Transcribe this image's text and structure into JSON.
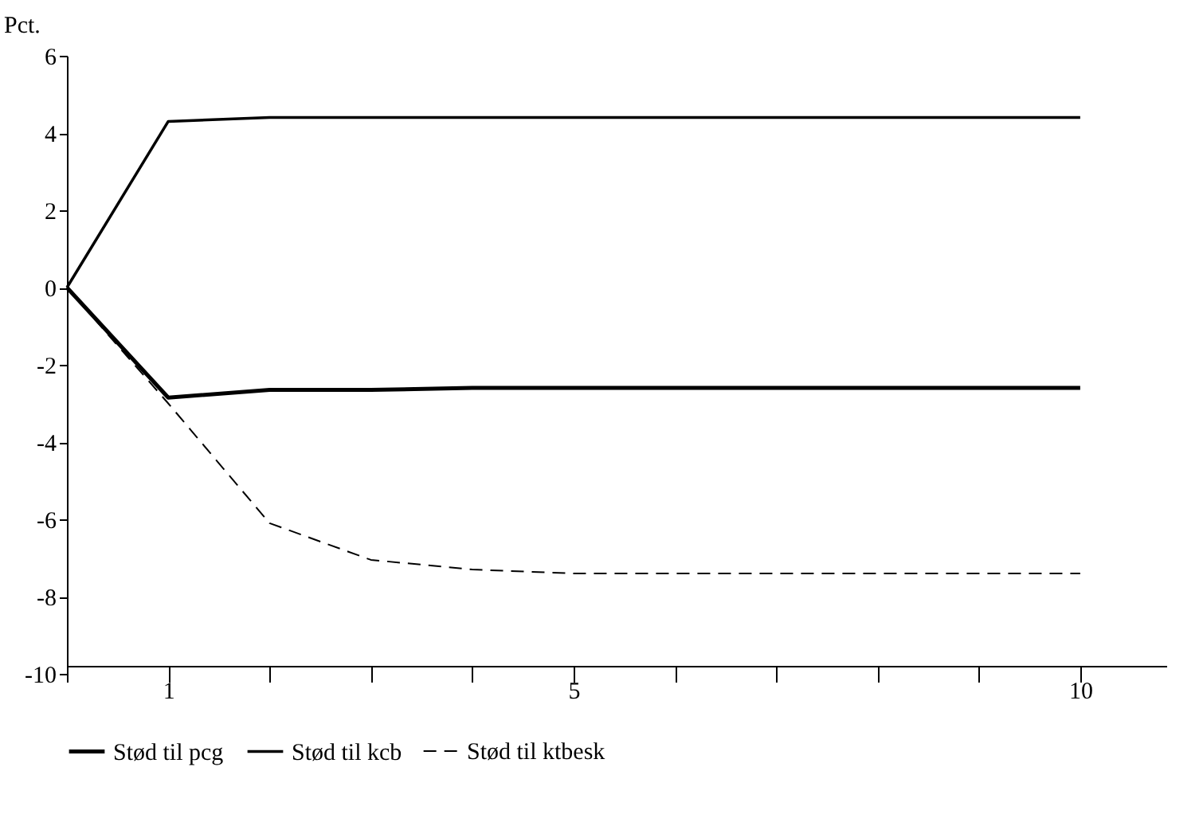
{
  "chart_data": {
    "type": "line",
    "ylabel": "Pct.",
    "x": [
      0,
      1,
      2,
      3,
      4,
      5,
      6,
      7,
      8,
      9,
      10
    ],
    "series": [
      {
        "name": "Stød til pcg",
        "color": "#000000",
        "line_style": "solid",
        "values": [
          0,
          -2.85,
          -2.65,
          -2.65,
          -2.6,
          -2.6,
          -2.6,
          -2.6,
          -2.6,
          -2.6,
          -2.6
        ]
      },
      {
        "name": "Stød til kcb",
        "color": "#000000",
        "line_style": "solid",
        "values": [
          0,
          4.3,
          4.4,
          4.4,
          4.4,
          4.4,
          4.4,
          4.4,
          4.4,
          4.4,
          4.4
        ]
      },
      {
        "name": "Stød til ktbesk",
        "color": "#000000",
        "line_style": "dashed",
        "values": [
          0,
          -3.0,
          -6.1,
          -7.05,
          -7.3,
          -7.4,
          -7.4,
          -7.4,
          -7.4,
          -7.4,
          -7.4
        ]
      }
    ],
    "xlim": [
      0,
      10.85
    ],
    "xticks": [
      {
        "value": 0,
        "label": null
      },
      1,
      {
        "value": 2,
        "label": null
      },
      {
        "value": 3,
        "label": null
      },
      {
        "value": 4,
        "label": null
      },
      5,
      {
        "value": 6,
        "label": null
      },
      {
        "value": 7,
        "label": null
      },
      {
        "value": 8,
        "label": null
      },
      {
        "value": 9,
        "label": null
      },
      10
    ],
    "ylim": [
      -10,
      6
    ],
    "yticks": [
      -10,
      -8,
      -6,
      -4,
      -2,
      0,
      2,
      4,
      6
    ],
    "grid": false,
    "legend": "bottom",
    "marker": "none"
  }
}
